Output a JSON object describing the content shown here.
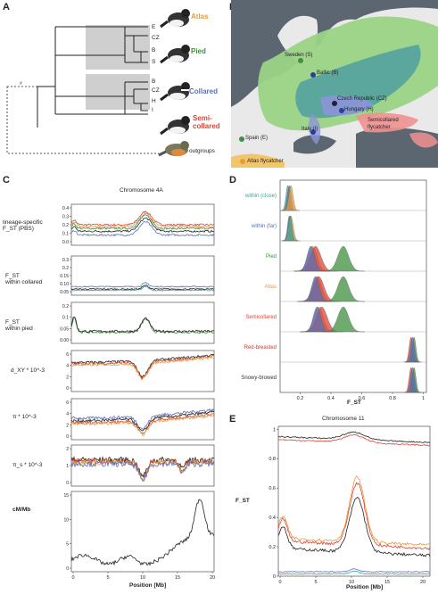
{
  "panels": {
    "a": "A",
    "b": "B",
    "c": "C",
    "d": "D",
    "e": "E"
  },
  "panel_a": {
    "tips": [
      "E",
      "CZ",
      "B",
      "S",
      "B",
      "CZ",
      "H",
      "I"
    ],
    "species": {
      "atlas": "Atlas",
      "pied": "Pied",
      "collared": "Collared",
      "semicollared": [
        "Semi-",
        "collared"
      ],
      "outgroups": "outgroups"
    },
    "colors": {
      "atlas": "#e39b3a",
      "pied": "#3f8f3f",
      "collared": "#5b6fb7",
      "semicollared": "#d9453a"
    }
  },
  "panel_b": {
    "places": [
      "Sweden (S)",
      "Baltic (B)",
      "Czech Republic (CZ)",
      "Hungary (H)",
      "Italy (I)",
      "Spain (E)",
      "Atlas flycatcher",
      "Semicollared",
      "flycatcher"
    ]
  },
  "panel_c": {
    "title": "Chromosome 4A",
    "xlabel": "Position [Mb]",
    "xticks": [
      "0",
      "5",
      "10",
      "15",
      "20"
    ],
    "rows": [
      {
        "label": [
          "lineage-specific",
          "F_ST (PBS)"
        ],
        "yticks": [
          "0.4",
          "0.3",
          "0.2",
          "0.1",
          "0.0"
        ]
      },
      {
        "label": [
          "F_ST",
          "within collared"
        ],
        "yticks": [
          "0.3",
          "0.2",
          "0.15",
          "0.10",
          "0.05"
        ]
      },
      {
        "label": [
          "F_ST",
          "within pied"
        ],
        "yticks": [
          "0.2",
          "0.1",
          "0.05",
          "0.00"
        ]
      },
      {
        "label": [
          "d_XY * 10^-3"
        ],
        "yticks": [
          "6",
          "4",
          "2",
          "0"
        ]
      },
      {
        "label": [
          "π * 10^-3"
        ],
        "yticks": [
          "6",
          "4",
          "2",
          "0"
        ]
      },
      {
        "label": [
          "π_s * 10^-3"
        ],
        "yticks": [
          "2",
          "1",
          "0"
        ]
      },
      {
        "label": [
          "cM/Mb"
        ],
        "yticks": [
          "15",
          "10",
          "5",
          "0"
        ]
      }
    ]
  },
  "panel_d": {
    "xlabel": "F_ST",
    "xticks": [
      "0.2",
      "0.4",
      "0.6",
      "0.8",
      "1"
    ],
    "rows": [
      {
        "label": "within (close)",
        "color": "#3aa39a"
      },
      {
        "label": "within (far)",
        "color": "#5b6fb7"
      },
      {
        "label": "Pied",
        "color": "#3f8f3f"
      },
      {
        "label": "Atlas",
        "color": "#e39b3a"
      },
      {
        "label": "Semicollared",
        "color": "#d9453a"
      },
      {
        "label": "Red-breasted",
        "color": "#c83a30"
      },
      {
        "label": "Snowy-browed",
        "color": "#333333"
      }
    ]
  },
  "panel_e": {
    "title": "Chromosome 11",
    "ylabel": "F_ST",
    "xlabel": "Position [Mb]",
    "yticks": [
      "1",
      "0.8",
      "0.6",
      "0.4",
      "0.2",
      "0"
    ],
    "xticks": [
      "0",
      "5",
      "10",
      "15",
      "20"
    ]
  },
  "series_colors": {
    "red": "#d9453a",
    "orange": "#e39b3a",
    "green": "#3f8f3f",
    "blue": "#5b6fb7",
    "black": "#222222",
    "teal": "#3aa39a"
  }
}
